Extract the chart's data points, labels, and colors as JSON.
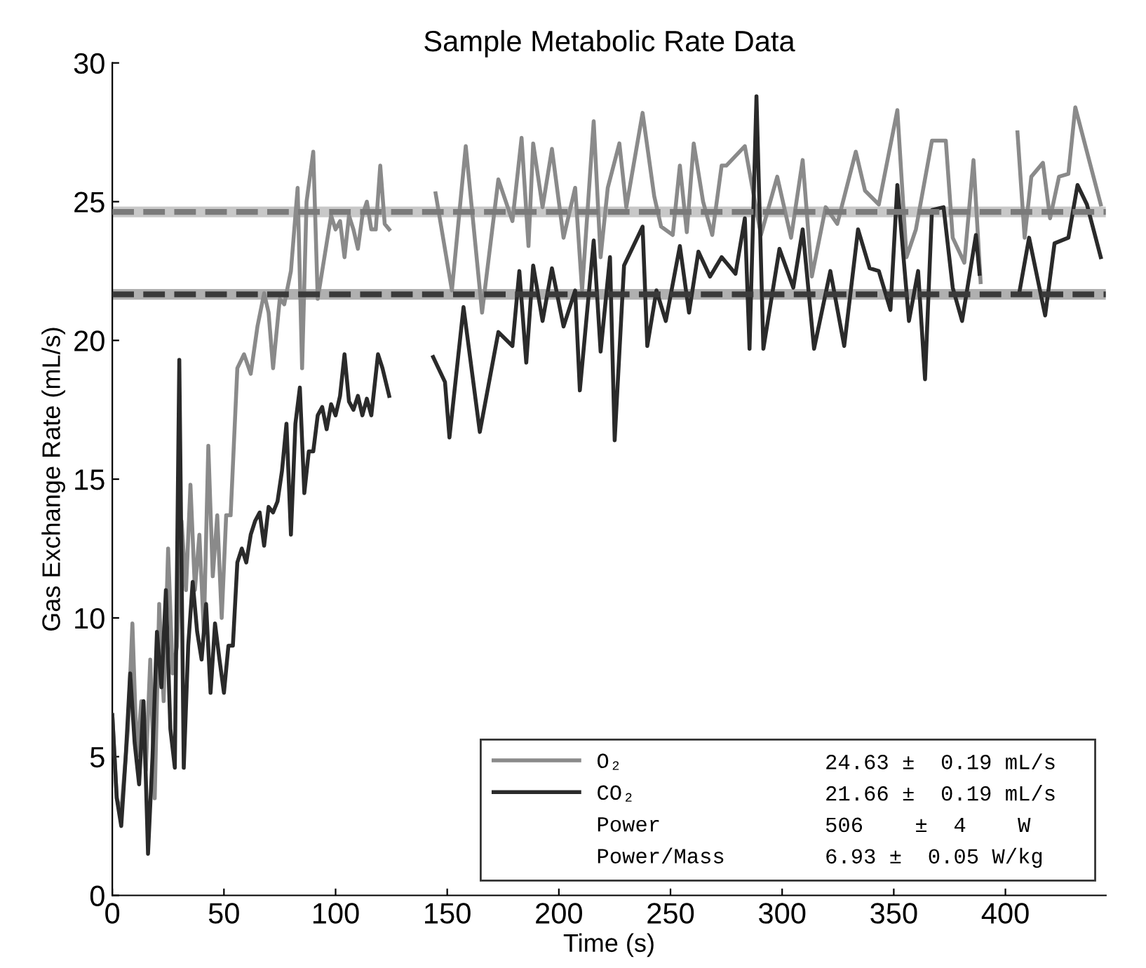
{
  "chart_data": {
    "type": "line",
    "title": "Sample Metabolic Rate Data",
    "xlabel": "Time (s)",
    "ylabel": "Gas Exchange Rate (mL/s)",
    "xlim": [
      0,
      445
    ],
    "xticks": [
      0,
      50,
      100,
      150,
      200,
      250,
      300,
      350,
      400
    ],
    "ylim": [
      0,
      30
    ],
    "yticks": [
      0,
      5,
      10,
      15,
      20,
      25,
      30
    ],
    "legend": "bottom right",
    "series": [
      {
        "name": "O₂",
        "color": "#8a8a8a",
        "x": [
          0,
          2,
          4,
          7,
          9,
          11,
          13,
          15,
          17,
          19,
          21,
          23,
          25,
          27,
          29,
          31,
          33,
          35,
          37,
          39,
          41,
          43,
          45,
          47,
          49,
          51,
          53,
          56,
          59,
          62,
          65,
          68,
          70,
          72,
          75,
          77,
          80,
          83,
          85,
          87,
          90,
          92,
          94,
          96,
          98,
          100,
          102,
          104,
          106,
          108,
          110,
          112,
          114,
          116,
          118,
          120,
          122,
          124,
          134,
          144.8,
          152.1,
          158.3,
          165.6,
          172.9,
          179.2,
          183.3,
          186.4,
          188.5,
          192.7,
          196.9,
          202.1,
          207.3,
          210.4,
          215.6,
          218.7,
          221.9,
          227.1,
          230.2,
          237.5,
          242.7,
          245.8,
          251.0,
          254.2,
          257.3,
          260.4,
          264.6,
          268.7,
          272.9,
          275,
          283.3,
          290.5,
          297.8,
          304,
          309.2,
          313.3,
          319.5,
          324.7,
          333,
          337.1,
          343.3,
          351.6,
          355.7,
          359.9,
          367.1,
          373.3,
          376.4,
          381.6,
          385.7,
          388.9,
          397,
          405.4,
          408.6,
          411.6,
          416.8,
          420,
          424,
          428.2,
          431.3,
          436.5,
          442.7
        ],
        "values": [
          6.5,
          3.5,
          3,
          6,
          9.8,
          5,
          7,
          4.5,
          8.5,
          3.5,
          10.5,
          7,
          12.5,
          8,
          9,
          13.5,
          11,
          14.8,
          11,
          13,
          9.5,
          16.2,
          11.5,
          13.7,
          10,
          13.7,
          13.7,
          19,
          19.5,
          18.8,
          20.5,
          21.7,
          21,
          19,
          21.5,
          21.3,
          22.5,
          25.5,
          19,
          25,
          26.8,
          21.5,
          22.5,
          23.5,
          24.5,
          24,
          24.3,
          23,
          24.5,
          24,
          23.3,
          24.5,
          25,
          24,
          24,
          26.3,
          24.2,
          24,
          null,
          25.3,
          21.8,
          27.0,
          21.0,
          25.8,
          24.3,
          27.3,
          23.4,
          27.1,
          24.8,
          26.9,
          23.7,
          25.5,
          21.8,
          27.9,
          23.0,
          25.5,
          27.1,
          24.8,
          28.2,
          25.2,
          24.1,
          23.8,
          26.3,
          23.9,
          27.1,
          25.0,
          23.8,
          26.3,
          26.3,
          27.0,
          23.8,
          25.9,
          23.7,
          26.5,
          22.3,
          24.8,
          24.2,
          26.8,
          25.4,
          24.9,
          28.3,
          23.0,
          24.0,
          27.2,
          27.2,
          23.7,
          22.8,
          26.5,
          22.1,
          null,
          27.5,
          23.7,
          25.9,
          26.4,
          24.4,
          25.9,
          26.0,
          28.4,
          26.8,
          24.9
        ]
      },
      {
        "name": "CO₂",
        "color": "#2a2a2a",
        "x": [
          0,
          2,
          4,
          6,
          8,
          10,
          12,
          14,
          16,
          18,
          20,
          22,
          24,
          26,
          28,
          30,
          32,
          34,
          36,
          38,
          40,
          42,
          44,
          46,
          48,
          50,
          52,
          54,
          56,
          58,
          60,
          62,
          64,
          66,
          68,
          70,
          72,
          74,
          76,
          78,
          80,
          82,
          84,
          86,
          88,
          90,
          92,
          94,
          96,
          98,
          100,
          102,
          104,
          106,
          108,
          110,
          112,
          114,
          116,
          119,
          121,
          124,
          134,
          143.7,
          149,
          151,
          157.3,
          164.6,
          172.9,
          179.2,
          182.3,
          185.4,
          188.5,
          192.7,
          196.9,
          202.1,
          207.3,
          209.4,
          215.6,
          218.7,
          222.9,
          225,
          229.2,
          237.5,
          239.6,
          243.7,
          247.9,
          254.2,
          258.3,
          262.5,
          267.7,
          272.9,
          275,
          279.1,
          283.3,
          285.4,
          288.5,
          291.6,
          298.8,
          305,
          309.2,
          314.3,
          321.6,
          327.8,
          334,
          339.2,
          343.3,
          348.5,
          351.6,
          356.8,
          360.9,
          364,
          367.1,
          372.3,
          376.4,
          380.6,
          386.8,
          388.4,
          397,
          406.4,
          410.6,
          417.8,
          422,
          428.2,
          432.3,
          436.5,
          442.7
        ],
        "values": [
          6.5,
          3.5,
          2.5,
          5,
          8,
          5.5,
          4,
          7,
          1.5,
          5,
          9.5,
          7.5,
          11,
          6,
          4.6,
          19.3,
          4.6,
          9,
          11.3,
          9.5,
          8.5,
          10.5,
          7.3,
          9.8,
          8.5,
          7.3,
          9,
          9,
          12,
          12.5,
          12,
          13,
          13.5,
          13.8,
          12.6,
          14,
          13.8,
          14.2,
          15.3,
          17,
          13,
          17,
          18.3,
          14.5,
          16,
          16,
          17.3,
          17.6,
          16.8,
          17.7,
          17.3,
          18,
          19.5,
          17.8,
          17.5,
          18,
          17.3,
          17.9,
          17.3,
          19.5,
          19,
          18,
          null,
          19.4,
          18.5,
          16.5,
          21.2,
          16.7,
          20.3,
          19.8,
          22.5,
          19.2,
          22.7,
          20.7,
          22.6,
          20.5,
          21.8,
          18.2,
          23.6,
          19.6,
          23.0,
          16.4,
          22.7,
          24.1,
          19.8,
          21.8,
          20.7,
          23.4,
          21.0,
          23.2,
          22.3,
          23.0,
          22.8,
          22.4,
          24.4,
          19.7,
          28.8,
          19.7,
          23.3,
          21.9,
          24.0,
          19.7,
          22.5,
          19.8,
          24.0,
          22.6,
          22.5,
          21.1,
          25.6,
          20.7,
          22.5,
          18.6,
          24.7,
          24.8,
          21.9,
          20.7,
          23.8,
          22.4,
          null,
          21.8,
          23.7,
          20.9,
          23.5,
          23.7,
          25.6,
          24.9,
          23.0
        ]
      }
    ],
    "ref_lines": [
      {
        "axis": "y",
        "value": 24.63,
        "color": "#7a7a7a",
        "line_style": "dashed"
      },
      {
        "axis": "y",
        "value": 21.66,
        "color": "#3a3a3a",
        "line_style": "dashed"
      }
    ],
    "bands": [
      {
        "axis": "y",
        "from": 24.44,
        "to": 24.82,
        "color": "#c8c8c8"
      },
      {
        "axis": "y",
        "from": 21.47,
        "to": 21.85,
        "color": "#b0b0b0"
      }
    ],
    "annotations": [
      "24.63 ±  0.19 mL/s",
      "21.66 ±  0.19 mL/s",
      "Power",
      "506    ±  4    W",
      "Power/Mass",
      "6.93 ±  0.05 W/kg"
    ]
  }
}
